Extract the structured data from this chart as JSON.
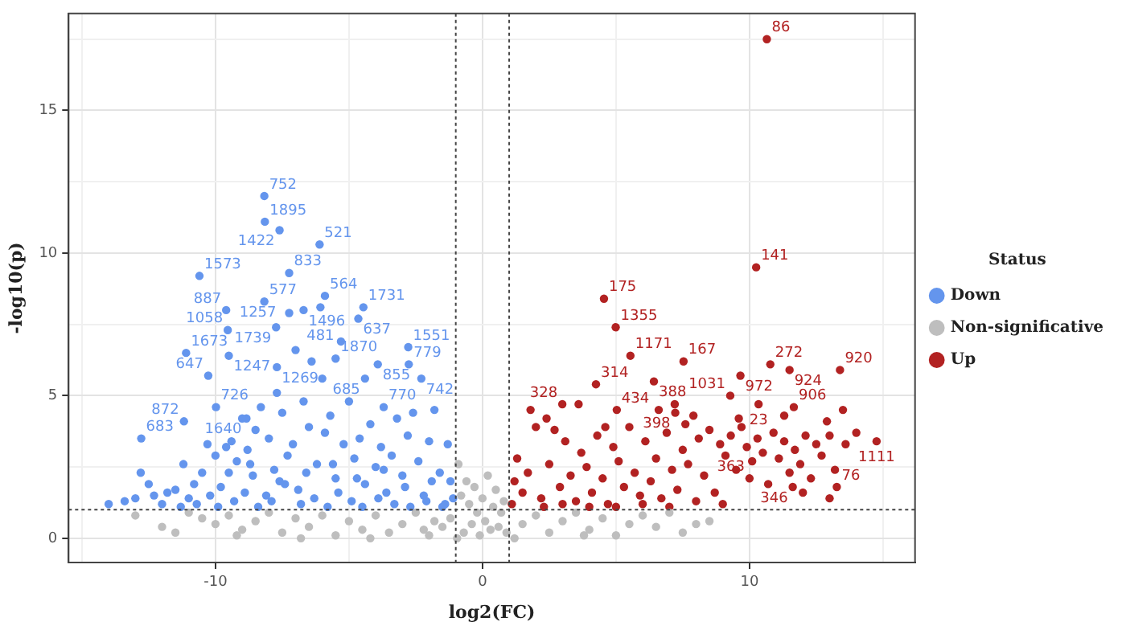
{
  "chart_data": {
    "type": "scatter",
    "xlabel": "log2(FC)",
    "ylabel": "-log10(p)",
    "legend_title": "Status",
    "legend": "right",
    "grid": true,
    "marker": "circle",
    "xlim": [
      -15.5,
      16.2
    ],
    "ylim": [
      -0.85,
      18.4
    ],
    "xticks": [
      {
        "value": -15,
        "label": null
      },
      -10,
      {
        "value": -5,
        "label": null
      },
      0,
      {
        "value": 5,
        "label": null
      },
      10,
      {
        "value": 15,
        "label": null
      }
    ],
    "yticks": [
      0,
      {
        "value": 2.5,
        "label": null
      },
      5,
      {
        "value": 7.5,
        "label": null
      },
      10,
      {
        "value": 12.5,
        "label": null
      },
      15,
      {
        "value": 17.5,
        "label": null
      }
    ],
    "annotations": [
      {
        "text": "752",
        "x": -8.17,
        "y": 12.0
      },
      {
        "text": "1895",
        "x": -8.15,
        "y": 11.1
      },
      {
        "text": "1422",
        "x": -7.6,
        "y": 10.8
      },
      {
        "text": "521",
        "x": -6.1,
        "y": 10.3
      },
      {
        "text": "1573",
        "x": -10.6,
        "y": 9.2
      },
      {
        "text": "833",
        "x": -7.24,
        "y": 9.3
      },
      {
        "text": "1496",
        "x": -6.7,
        "y": 8.0
      },
      {
        "text": "564",
        "x": -5.9,
        "y": 8.5
      },
      {
        "text": "577",
        "x": -8.17,
        "y": 8.3
      },
      {
        "text": "1257",
        "x": -7.24,
        "y": 7.9
      },
      {
        "text": "887",
        "x": -9.6,
        "y": 8.0
      },
      {
        "text": "481",
        "x": -6.07,
        "y": 8.1
      },
      {
        "text": "1731",
        "x": -4.46,
        "y": 8.1
      },
      {
        "text": "1058",
        "x": -9.54,
        "y": 7.3
      },
      {
        "text": "1739",
        "x": -7.73,
        "y": 7.4
      },
      {
        "text": "637",
        "x": -4.65,
        "y": 7.7
      },
      {
        "text": "1673",
        "x": -11.1,
        "y": 6.5
      },
      {
        "text": "1247",
        "x": -9.5,
        "y": 6.4
      },
      {
        "text": "1870",
        "x": -5.5,
        "y": 6.3
      },
      {
        "text": "1551",
        "x": -2.78,
        "y": 6.7
      },
      {
        "text": "779",
        "x": -2.76,
        "y": 6.1
      },
      {
        "text": "647",
        "x": -10.27,
        "y": 5.7
      },
      {
        "text": "1269",
        "x": -7.7,
        "y": 6.0
      },
      {
        "text": "855",
        "x": -3.92,
        "y": 6.1
      },
      {
        "text": "742",
        "x": -2.29,
        "y": 5.6
      },
      {
        "text": "726",
        "x": -9.98,
        "y": 4.6
      },
      {
        "text": "1640",
        "x": -8.84,
        "y": 4.2
      },
      {
        "text": "685",
        "x": -4.4,
        "y": 5.6
      },
      {
        "text": "770",
        "x": -3.7,
        "y": 4.6
      },
      {
        "text": "872",
        "x": -11.18,
        "y": 4.1
      },
      {
        "text": "683",
        "x": -12.78,
        "y": 3.5
      },
      {
        "text": "86",
        "x": 10.65,
        "y": 17.5
      },
      {
        "text": "141",
        "x": 10.25,
        "y": 9.5
      },
      {
        "text": "175",
        "x": 4.55,
        "y": 8.4
      },
      {
        "text": "1355",
        "x": 4.99,
        "y": 7.4
      },
      {
        "text": "1171",
        "x": 5.54,
        "y": 6.4
      },
      {
        "text": "167",
        "x": 7.53,
        "y": 6.2
      },
      {
        "text": "272",
        "x": 10.78,
        "y": 6.1
      },
      {
        "text": "920",
        "x": 13.39,
        "y": 5.9
      },
      {
        "text": "314",
        "x": 4.25,
        "y": 5.4
      },
      {
        "text": "388",
        "x": 6.42,
        "y": 5.5
      },
      {
        "text": "1031",
        "x": 9.28,
        "y": 5.0
      },
      {
        "text": "972",
        "x": 9.66,
        "y": 5.7
      },
      {
        "text": "924",
        "x": 11.5,
        "y": 5.9
      },
      {
        "text": "328",
        "x": 2.99,
        "y": 4.7
      },
      {
        "text": "434",
        "x": 5.03,
        "y": 4.5
      },
      {
        "text": "398",
        "x": 7.22,
        "y": 4.4
      },
      {
        "text": "23",
        "x": 10.34,
        "y": 4.7
      },
      {
        "text": "906",
        "x": 11.66,
        "y": 4.6
      },
      {
        "text": "1111",
        "x": 14.76,
        "y": 3.4
      },
      {
        "text": "346",
        "x": 11.62,
        "y": 1.8
      },
      {
        "text": "76",
        "x": 13.27,
        "y": 1.8
      },
      {
        "text": "363",
        "x": 10.0,
        "y": 2.1
      }
    ],
    "ref_lines": [
      {
        "axis": "x",
        "value": -1,
        "line_style": "dotted"
      },
      {
        "axis": "x",
        "value": 1,
        "line_style": "dotted"
      },
      {
        "axis": "y",
        "value": 1,
        "line_style": "dotted"
      }
    ],
    "series": [
      {
        "name": "Down",
        "color": "#6495ed",
        "x": [
          -8.17,
          -8.15,
          -7.6,
          -6.1,
          -10.6,
          -7.24,
          -6.7,
          -5.9,
          -8.17,
          -7.24,
          -9.6,
          -6.07,
          -4.46,
          -9.54,
          -7.73,
          -4.65,
          -11.1,
          -9.5,
          -5.5,
          -2.78,
          -2.76,
          -10.27,
          -7.7,
          -3.92,
          -2.29,
          -9.98,
          -8.84,
          -4.4,
          -3.7,
          -11.18,
          -12.78,
          -14,
          -13.4,
          -13,
          -12.5,
          -12.8,
          -12.3,
          -11.8,
          -11.5,
          -11.2,
          -11,
          -10.8,
          -10.5,
          -10.3,
          -10,
          -9.8,
          -9.6,
          -9.4,
          -9.2,
          -9,
          -8.8,
          -8.6,
          -8.5,
          -8.3,
          -8.1,
          -8,
          -7.8,
          -7.7,
          -7.5,
          -7.3,
          -7.1,
          -7,
          -6.9,
          -6.7,
          -6.5,
          -6.4,
          -6.2,
          -6,
          -5.9,
          -5.7,
          -5.5,
          -5.3,
          -5.2,
          -5,
          -4.8,
          -4.6,
          -4.4,
          -4.2,
          -4,
          -3.8,
          -3.6,
          -3.4,
          -3.2,
          -3,
          -2.8,
          -2.6,
          -2.4,
          -2.2,
          -2,
          -1.8,
          -1.6,
          -1.4,
          -1.3,
          -1.2,
          -1.1,
          -12,
          -11.3,
          -10.7,
          -10.2,
          -9.9,
          -9.3,
          -8.9,
          -8.4,
          -7.9,
          -7.4,
          -6.8,
          -6.3,
          -5.8,
          -5.4,
          -4.9,
          -4.5,
          -3.9,
          -3.3,
          -2.7,
          -2.1,
          -1.5,
          -9.5,
          -8.7,
          -7.6,
          -6.6,
          -5.6,
          -4.7,
          -3.7,
          -2.9,
          -1.9
        ],
        "values": [
          12.0,
          11.1,
          10.8,
          10.3,
          9.2,
          9.3,
          8.0,
          8.5,
          8.3,
          7.9,
          8.0,
          8.1,
          8.1,
          7.3,
          7.4,
          7.7,
          6.5,
          6.4,
          6.3,
          6.7,
          6.1,
          5.7,
          6.0,
          6.1,
          5.6,
          4.6,
          4.2,
          5.6,
          4.6,
          4.1,
          3.5,
          1.2,
          1.3,
          1.4,
          1.9,
          2.3,
          1.5,
          1.6,
          1.7,
          2.6,
          1.4,
          1.9,
          2.3,
          3.3,
          2.9,
          1.8,
          3.2,
          3.4,
          2.7,
          4.2,
          3.1,
          2.2,
          3.8,
          4.6,
          1.5,
          3.5,
          2.4,
          5.1,
          4.4,
          2.9,
          3.3,
          6.6,
          1.7,
          4.8,
          3.9,
          6.2,
          2.6,
          5.6,
          3.7,
          4.3,
          2.1,
          6.9,
          3.3,
          4.8,
          2.8,
          3.5,
          1.9,
          4.0,
          2.5,
          3.2,
          1.6,
          2.9,
          4.2,
          2.2,
          3.6,
          4.4,
          2.7,
          1.5,
          3.4,
          4.5,
          2.3,
          1.2,
          3.3,
          2.0,
          1.4,
          1.2,
          1.1,
          1.2,
          1.5,
          1.1,
          1.3,
          1.6,
          1.1,
          1.3,
          1.9,
          1.2,
          1.4,
          1.1,
          1.6,
          1.3,
          1.1,
          1.4,
          1.2,
          1.1,
          1.3,
          1.1,
          2.3,
          2.6,
          2.0,
          2.3,
          2.6,
          2.1,
          2.4,
          1.8,
          2.0
        ]
      },
      {
        "name": "Non-significative",
        "color": "#bebebe",
        "x": [
          -13,
          -12,
          -11,
          -10.5,
          -10,
          -9.5,
          -9,
          -8.5,
          -8,
          -7.5,
          -7,
          -6.5,
          -6,
          -5.5,
          -5,
          -4.5,
          -4,
          -3.5,
          -3,
          -2.5,
          -2,
          -1.5,
          -1.2,
          -0.9,
          -0.8,
          -0.7,
          -0.6,
          -0.5,
          -0.4,
          -0.3,
          -0.2,
          -0.1,
          0,
          0.1,
          0.2,
          0.3,
          0.4,
          0.5,
          0.6,
          0.7,
          0.8,
          0.9,
          1.5,
          2,
          2.5,
          3,
          3.5,
          4,
          4.5,
          5,
          5.5,
          6,
          6.5,
          7,
          7.5,
          8,
          8.5,
          -11.5,
          -9.2,
          -6.8,
          -4.2,
          -2.2,
          1.2,
          3.8,
          -1.8,
          -0.95
        ],
        "values": [
          0.8,
          0.4,
          0.9,
          0.7,
          0.5,
          0.8,
          0.3,
          0.6,
          0.9,
          0.2,
          0.7,
          0.4,
          0.8,
          0.1,
          0.6,
          0.3,
          0.8,
          0.2,
          0.5,
          0.9,
          0.1,
          0.4,
          0.7,
          2.6,
          1.5,
          0.2,
          2.0,
          1.2,
          0.5,
          1.8,
          0.9,
          0.1,
          1.4,
          0.6,
          2.2,
          0.3,
          1.1,
          1.7,
          0.4,
          0.9,
          1.3,
          0.2,
          0.5,
          0.8,
          0.2,
          0.6,
          0.9,
          0.3,
          0.7,
          0.1,
          0.5,
          0.8,
          0.4,
          0.9,
          0.2,
          0.5,
          0.6,
          0.2,
          0.1,
          0.0,
          0.0,
          0.3,
          0.0,
          0.1,
          0.6,
          0.0
        ]
      },
      {
        "name": "Up",
        "color": "#b22222",
        "x": [
          10.65,
          10.25,
          4.55,
          4.99,
          5.54,
          7.53,
          10.78,
          13.39,
          4.25,
          6.42,
          9.28,
          9.66,
          11.5,
          2.99,
          5.03,
          7.22,
          10.34,
          11.66,
          14.76,
          11.62,
          13.27,
          10.0,
          1.1,
          1.2,
          1.3,
          1.5,
          1.7,
          1.8,
          2,
          2.2,
          2.4,
          2.5,
          2.7,
          2.9,
          3.1,
          3.3,
          3.5,
          3.7,
          3.9,
          4.1,
          4.3,
          4.5,
          4.7,
          4.9,
          5.1,
          5.3,
          5.5,
          5.7,
          5.9,
          6.1,
          6.3,
          6.5,
          6.7,
          6.9,
          7.1,
          7.3,
          7.5,
          7.7,
          7.9,
          8.1,
          8.3,
          8.5,
          8.7,
          8.9,
          9.1,
          9.3,
          9.5,
          9.7,
          9.9,
          10.1,
          10.3,
          10.5,
          10.7,
          10.9,
          11.1,
          11.3,
          11.5,
          11.7,
          11.9,
          12.1,
          12.3,
          12.5,
          12.7,
          13,
          13.2,
          13.6,
          14,
          6,
          7,
          8,
          9,
          2.3,
          3,
          4,
          5,
          3.6,
          4.6,
          6.6,
          7.6,
          9.6,
          12.9,
          13.5,
          11.3,
          12.0,
          13.0,
          7.2
        ],
        "values": [
          17.5,
          9.5,
          8.4,
          7.4,
          6.4,
          6.2,
          6.1,
          5.9,
          5.4,
          5.5,
          5.0,
          5.7,
          5.9,
          4.7,
          4.5,
          4.4,
          4.7,
          4.6,
          3.4,
          1.8,
          1.8,
          2.1,
          1.2,
          2.0,
          2.8,
          1.6,
          2.3,
          4.5,
          3.9,
          1.4,
          4.2,
          2.6,
          3.8,
          1.8,
          3.4,
          2.2,
          1.3,
          3.0,
          2.5,
          1.6,
          3.6,
          2.1,
          1.2,
          3.2,
          2.7,
          1.8,
          3.9,
          2.3,
          1.5,
          3.4,
          2.0,
          2.8,
          1.4,
          3.7,
          2.4,
          1.7,
          3.1,
          2.6,
          4.3,
          3.5,
          2.2,
          3.8,
          1.6,
          3.3,
          2.9,
          3.6,
          2.4,
          3.9,
          3.2,
          2.7,
          3.5,
          3.0,
          1.9,
          3.7,
          2.8,
          3.4,
          2.3,
          3.1,
          2.6,
          3.6,
          2.1,
          3.3,
          2.9,
          3.6,
          2.4,
          3.3,
          3.7,
          1.2,
          1.1,
          1.3,
          1.2,
          1.1,
          1.2,
          1.1,
          1.1,
          4.7,
          3.9,
          4.5,
          4.0,
          4.2,
          4.1,
          4.5,
          4.3,
          1.6,
          1.4,
          4.7
        ]
      }
    ]
  }
}
